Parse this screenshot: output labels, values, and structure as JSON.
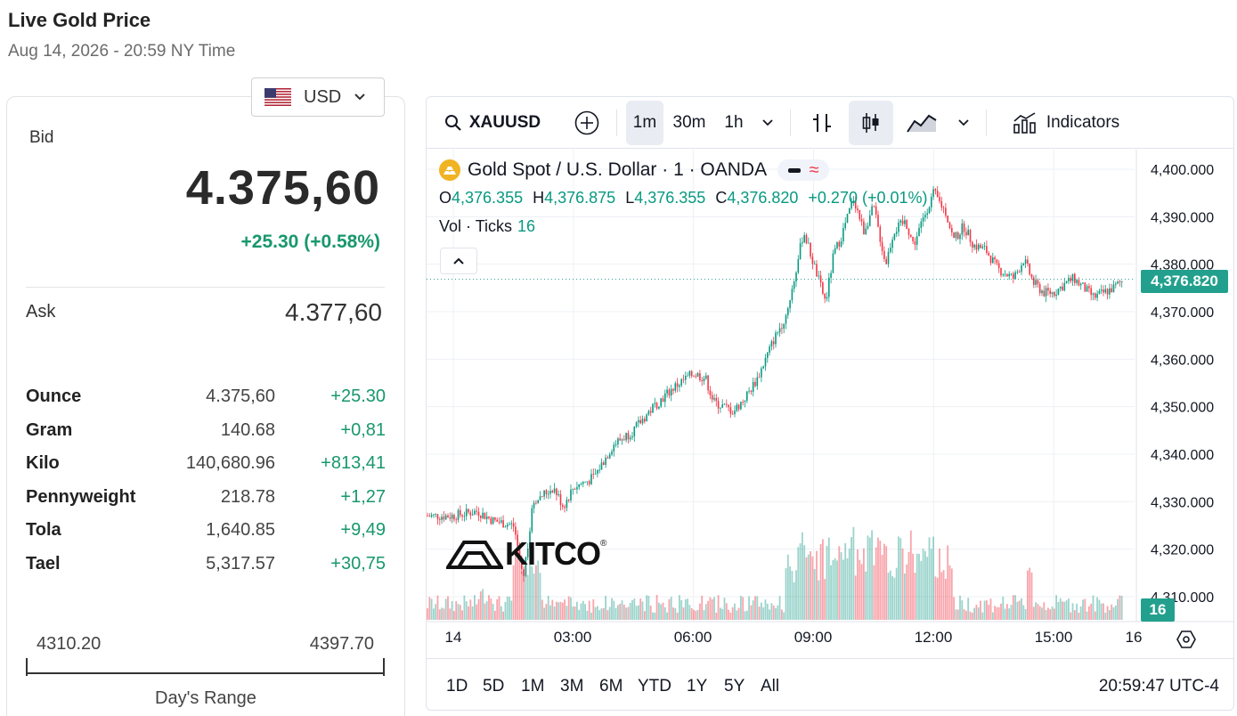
{
  "header": {
    "title": "Live Gold Price",
    "subtitle": "Aug 14, 2026 - 20:59 NY Time"
  },
  "currency": {
    "selected": "USD",
    "flag_icon": "us-flag-icon"
  },
  "prices": {
    "bid_label": "Bid",
    "bid_value": "4.375,60",
    "bid_change": "+25.30 (+0.58%)",
    "ask_label": "Ask",
    "ask_value": "4.377,60"
  },
  "units": [
    {
      "name": "Ounce",
      "price": "4.375,60",
      "change": "+25.30"
    },
    {
      "name": "Gram",
      "price": "140.68",
      "change": "+0,81"
    },
    {
      "name": "Kilo",
      "price": "140,680.96",
      "change": "+813,41"
    },
    {
      "name": "Pennyweight",
      "price": "218.78",
      "change": "+1,27"
    },
    {
      "name": "Tola",
      "price": "1,640.85",
      "change": "+9,49"
    },
    {
      "name": "Tael",
      "price": "5,317.57",
      "change": "+30,75"
    }
  ],
  "day_range": {
    "low": "4310.20",
    "high": "4397.70",
    "label": "Day's Range"
  },
  "chart_toolbar": {
    "symbol": "XAUUSD",
    "intervals": [
      "1m",
      "30m",
      "1h"
    ],
    "active_interval": "1m",
    "indicators_label": "Indicators"
  },
  "legend": {
    "instrument": "Gold Spot / U.S. Dollar · 1 · OANDA",
    "o_label": "O",
    "o_value": "4,376.355",
    "h_label": "H",
    "h_value": "4,376.875",
    "l_label": "L",
    "l_value": "4,376.355",
    "c_label": "C",
    "c_value": "4,376.820",
    "change": "+0.270 (+0.01%)",
    "vol_label": "Vol · Ticks",
    "vol_value": "16"
  },
  "chart_data": {
    "type": "candlestick",
    "y_ticks": [
      "4,400.000",
      "4,390.000",
      "4,380.000",
      "4,370.000",
      "4,360.000",
      "4,350.000",
      "4,340.000",
      "4,330.000",
      "4,320.000",
      "4,310.000"
    ],
    "y_range": [
      4305,
      4402
    ],
    "x_ticks": [
      "14",
      "03:00",
      "06:00",
      "09:00",
      "12:00",
      "15:00",
      "16"
    ],
    "current_price": "4,376.820",
    "current_volume": "16",
    "price_path": [
      [
        0,
        4327
      ],
      [
        0.6,
        4328
      ],
      [
        1.0,
        4326
      ],
      [
        1.5,
        4325
      ],
      [
        1.75,
        4314
      ],
      [
        2.0,
        4330
      ],
      [
        2.5,
        4333
      ],
      [
        2.75,
        4329
      ],
      [
        3.0,
        4333
      ],
      [
        3.5,
        4335
      ],
      [
        4.0,
        4342
      ],
      [
        4.5,
        4345
      ],
      [
        5.0,
        4350
      ],
      [
        5.5,
        4354
      ],
      [
        6.0,
        4357
      ],
      [
        6.3,
        4356
      ],
      [
        6.5,
        4351
      ],
      [
        7.0,
        4349
      ],
      [
        7.3,
        4352
      ],
      [
        7.6,
        4356
      ],
      [
        8.0,
        4364
      ],
      [
        8.3,
        4369
      ],
      [
        8.5,
        4376
      ],
      [
        8.75,
        4387
      ],
      [
        9.0,
        4380
      ],
      [
        9.3,
        4372
      ],
      [
        9.5,
        4382
      ],
      [
        9.7,
        4386
      ],
      [
        10.0,
        4394
      ],
      [
        10.25,
        4387
      ],
      [
        10.5,
        4392
      ],
      [
        10.8,
        4380
      ],
      [
        11.0,
        4387
      ],
      [
        11.3,
        4389
      ],
      [
        11.5,
        4384
      ],
      [
        11.8,
        4391
      ],
      [
        12.0,
        4395
      ],
      [
        12.3,
        4391
      ],
      [
        12.5,
        4385
      ],
      [
        12.75,
        4388
      ],
      [
        13.0,
        4384
      ],
      [
        13.3,
        4383
      ],
      [
        13.6,
        4379
      ],
      [
        14.0,
        4377
      ],
      [
        14.25,
        4381
      ],
      [
        14.5,
        4376
      ],
      [
        14.75,
        4374
      ],
      [
        15.0,
        4374
      ],
      [
        15.3,
        4376
      ],
      [
        15.5,
        4377
      ],
      [
        15.75,
        4375
      ],
      [
        16.0,
        4373
      ],
      [
        16.25,
        4374
      ],
      [
        16.5,
        4375
      ],
      [
        16.75,
        4376.8
      ]
    ]
  },
  "range_buttons": [
    "1D",
    "5D",
    "1M",
    "3M",
    "6M",
    "YTD",
    "1Y",
    "5Y",
    "All"
  ],
  "clock": "20:59:47 UTC-4",
  "logo_text": "KITCO",
  "logo_reg": "®",
  "colors": {
    "up": "#089981",
    "down": "#f23645",
    "accent": "#22a08d"
  }
}
